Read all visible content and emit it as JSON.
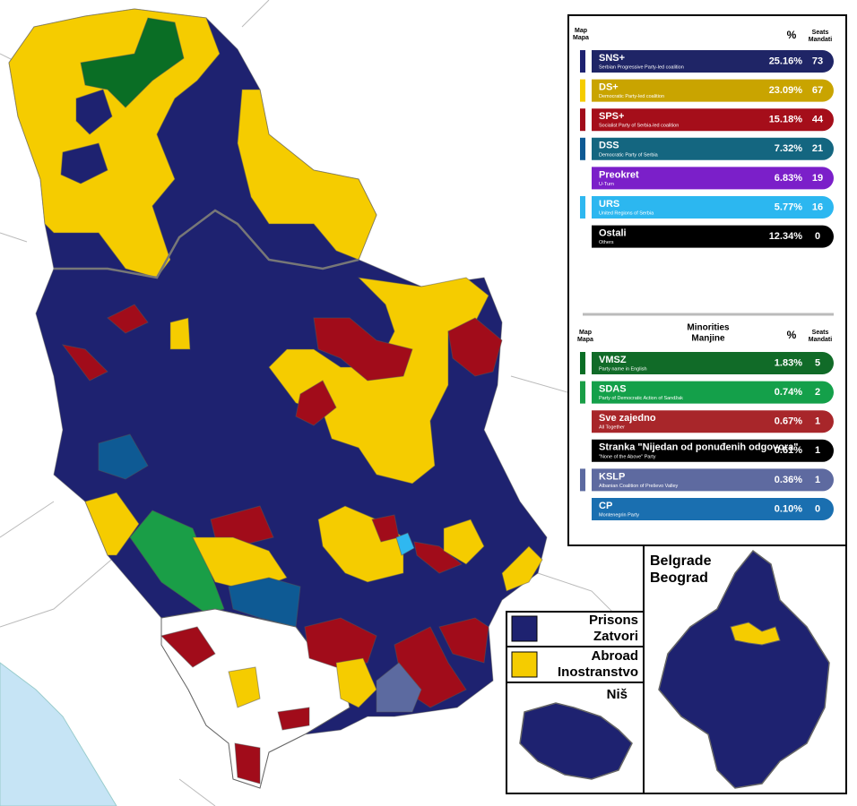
{
  "legend": {
    "map_label": [
      "Map",
      "Mapa"
    ],
    "pct_label": "%",
    "seats_label": [
      "Seats",
      "Mandati"
    ],
    "parties": [
      {
        "abbr": "SNS+",
        "name": "Serbian Progressive Party-led coalition",
        "percent": "25.16%",
        "seats": 73,
        "color": "#1f2566",
        "map_color": "#1e2270"
      },
      {
        "abbr": "DS+",
        "name": "Democratic Party-led coalition",
        "percent": "23.09%",
        "seats": 67,
        "color": "#c9a400",
        "map_color": "#f5cc00"
      },
      {
        "abbr": "SPS+",
        "name": "Socialist Party of Serbia-led coalition",
        "percent": "15.18%",
        "seats": 44,
        "color": "#a50e1a",
        "map_color": "#a10c1a"
      },
      {
        "abbr": "DSS",
        "name": "Democratic Party of Serbia",
        "percent": "7.32%",
        "seats": 21,
        "color": "#146680",
        "map_color": "#0e5a94"
      },
      {
        "abbr": "Preokret",
        "name": "U-Turn",
        "percent": "6.83%",
        "seats": 19,
        "color": "#7b1fc9"
      },
      {
        "abbr": "URS",
        "name": "United Regions of Serbia",
        "percent": "5.77%",
        "seats": 16,
        "color": "#2cb7f0",
        "map_color": "#2fb8f0"
      },
      {
        "abbr": "Ostali",
        "name": "Others",
        "percent": "12.34%",
        "seats": 0,
        "color": "#000000"
      }
    ],
    "minorities_title": [
      "Minorities",
      "Manjine"
    ],
    "minorities": [
      {
        "abbr": "VMSZ",
        "name": "Party name in English",
        "percent": "1.83%",
        "seats": 5,
        "color": "#116b28",
        "map_color": "#0a6e25"
      },
      {
        "abbr": "SDAS",
        "name": "Party of Democratic Action of Sandžak",
        "percent": "0.74%",
        "seats": 2,
        "color": "#14a04a",
        "map_color": "#1a9e47"
      },
      {
        "abbr": "Sve zajedno",
        "name": "All Together",
        "percent": "0.67%",
        "seats": 1,
        "color": "#a8262a"
      },
      {
        "abbr": "Stranka \"Nijedan od ponuđenih odgovora\"",
        "name": "\"None of the Above\" Party",
        "percent": "0.61%",
        "seats": 1,
        "color": "#000000"
      },
      {
        "abbr": "KSLP",
        "name": "Albanian Coalition of Preševo Valley",
        "percent": "0.36%",
        "seats": 1,
        "color": "#5e6aa0",
        "map_color": "#5c6aa0"
      },
      {
        "abbr": "CP",
        "name": "Montenegrin Party",
        "percent": "0.10%",
        "seats": 0,
        "color": "#1a6fb0"
      }
    ]
  },
  "insets": {
    "belgrade": [
      "Belgrade",
      "Beograd"
    ],
    "nis": "Niš",
    "prisons": [
      "Prisons",
      "Zatvori"
    ],
    "abroad": [
      "Abroad",
      "Inostranstvo"
    ]
  }
}
